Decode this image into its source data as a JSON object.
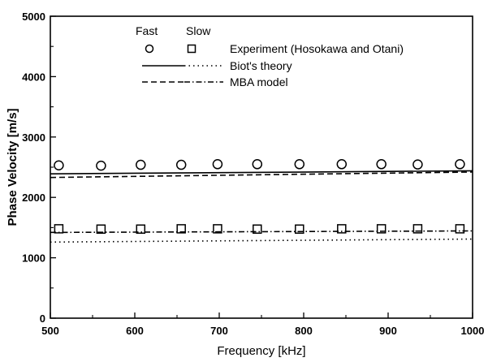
{
  "chart_data": {
    "type": "scatter",
    "xlabel": "Frequency [kHz]",
    "ylabel": "Phase Velocity [m/s]",
    "xlim": [
      500,
      1000
    ],
    "ylim": [
      0,
      5000
    ],
    "xticks": [
      500,
      600,
      700,
      800,
      900,
      1000
    ],
    "yticks": [
      0,
      1000,
      2000,
      3000,
      4000,
      5000
    ],
    "grid": false,
    "legend_position": "top-right",
    "legend": {
      "header_fast": "Fast",
      "header_slow": "Slow",
      "experiment": "Experiment (Hosokawa and Otani)",
      "biot": "Biot's theory",
      "mba": "MBA model"
    },
    "series": [
      {
        "name": "Experiment (Hosokawa and Otani)",
        "wave": "Fast",
        "kind": "scatter",
        "marker": "circle",
        "x": [
          510,
          560,
          607,
          655,
          698,
          745,
          795,
          845,
          892,
          935,
          985
        ],
        "y": [
          2530,
          2525,
          2540,
          2540,
          2550,
          2550,
          2550,
          2550,
          2550,
          2545,
          2550
        ]
      },
      {
        "name": "Experiment (Hosokawa and Otani)",
        "wave": "Slow",
        "kind": "scatter",
        "marker": "square",
        "x": [
          510,
          560,
          607,
          655,
          698,
          745,
          795,
          845,
          892,
          935,
          985
        ],
        "y": [
          1480,
          1475,
          1475,
          1480,
          1480,
          1475,
          1475,
          1480,
          1480,
          1480,
          1480
        ]
      },
      {
        "name": "Biot's theory",
        "wave": "Fast",
        "kind": "line",
        "style": "solid",
        "x": [
          500,
          1000
        ],
        "y": [
          2390,
          2440
        ]
      },
      {
        "name": "Biot's theory",
        "wave": "Slow",
        "kind": "line",
        "style": "dotted",
        "x": [
          500,
          1000
        ],
        "y": [
          1260,
          1310
        ]
      },
      {
        "name": "MBA model",
        "wave": "Fast",
        "kind": "line",
        "style": "dashed",
        "x": [
          500,
          1000
        ],
        "y": [
          2330,
          2420
        ]
      },
      {
        "name": "MBA model",
        "wave": "Slow",
        "kind": "line",
        "style": "dashdot",
        "x": [
          500,
          1000
        ],
        "y": [
          1420,
          1445
        ]
      }
    ]
  }
}
